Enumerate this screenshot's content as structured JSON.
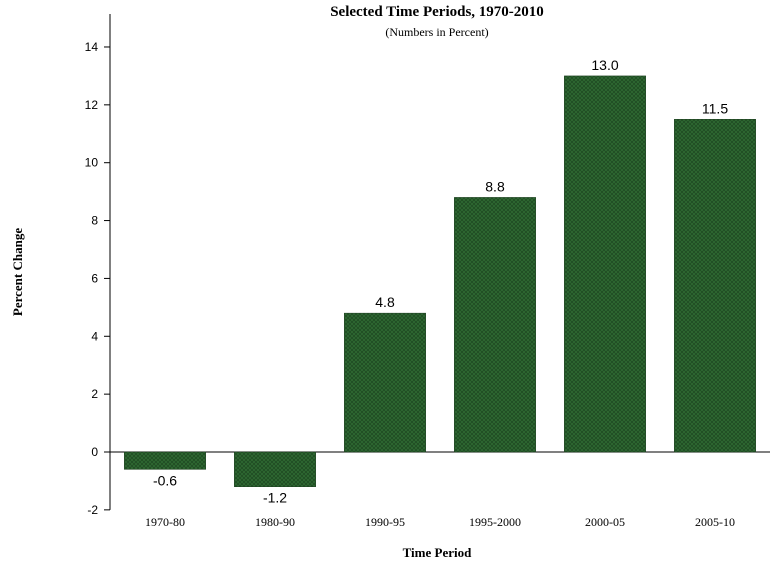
{
  "chart_data": {
    "type": "bar",
    "title": "Selected Time Periods, 1970-2010",
    "subtitle": "(Numbers in Percent)",
    "xlabel": "Time Period",
    "ylabel": "Percent Change",
    "categories": [
      "1970-80",
      "1980-90",
      "1990-95",
      "1995-2000",
      "2000-05",
      "2005-10"
    ],
    "values": [
      -0.6,
      -1.2,
      4.8,
      8.8,
      13.0,
      11.5
    ],
    "data_labels": [
      "-0.6",
      "-1.2",
      "4.8",
      "8.8",
      "13.0",
      "11.5"
    ],
    "ylim": [
      -2,
      15
    ],
    "yticks": [
      -2,
      0,
      2,
      4,
      6,
      8,
      10,
      12,
      14
    ],
    "grid": false,
    "legend": "none",
    "bar_color": "#1f4a22",
    "bar_pattern_color": "#2f6a33"
  }
}
